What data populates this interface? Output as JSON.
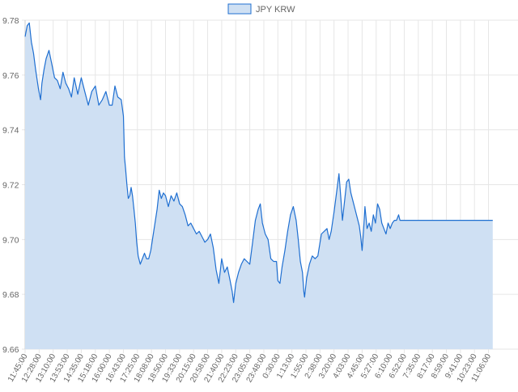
{
  "chart_data": {
    "type": "area",
    "legend": {
      "label": "JPY KRW",
      "position": "top-center"
    },
    "colors": {
      "line": "#1f6fd1",
      "fill": "#cfe0f3",
      "grid": "#e6e6e6",
      "axis_text": "#666666"
    },
    "ylim": [
      9.66,
      9.78
    ],
    "y_ticks": [
      "9.78",
      "9.76",
      "9.74",
      "9.72",
      "9.70",
      "9.68",
      "9.66"
    ],
    "x_ticks": [
      "11:45:00",
      "12:28:00",
      "13:10:00",
      "13:53:00",
      "14:35:00",
      "15:18:00",
      "16:00:00",
      "16:43:00",
      "17:25:00",
      "18:08:00",
      "18:50:00",
      "19:33:00",
      "20:15:00",
      "20:58:00",
      "21:40:00",
      "22:23:00",
      "23:05:00",
      "23:48:00",
      "0:30:00",
      "1:13:00",
      "1:55:00",
      "2:38:00",
      "3:20:00",
      "4:03:00",
      "4:45:00",
      "5:27:00",
      "6:10:00",
      "6:52:00",
      "7:35:00",
      "8:17:00",
      "8:59:00",
      "9:41:00",
      "10:23:00",
      "11:06:00"
    ],
    "grid": true,
    "series": [
      {
        "name": "JPY KRW",
        "points": [
          [
            0.0,
            9.774
          ],
          [
            0.15,
            9.778
          ],
          [
            0.3,
            9.779
          ],
          [
            0.45,
            9.772
          ],
          [
            0.6,
            9.768
          ],
          [
            0.75,
            9.762
          ],
          [
            0.95,
            9.755
          ],
          [
            1.1,
            9.751
          ],
          [
            1.2,
            9.757
          ],
          [
            1.35,
            9.762
          ],
          [
            1.5,
            9.766
          ],
          [
            1.7,
            9.769
          ],
          [
            1.9,
            9.764
          ],
          [
            2.1,
            9.759
          ],
          [
            2.3,
            9.758
          ],
          [
            2.5,
            9.755
          ],
          [
            2.7,
            9.761
          ],
          [
            2.9,
            9.757
          ],
          [
            3.1,
            9.755
          ],
          [
            3.3,
            9.752
          ],
          [
            3.5,
            9.759
          ],
          [
            3.75,
            9.753
          ],
          [
            4.0,
            9.759
          ],
          [
            4.25,
            9.754
          ],
          [
            4.5,
            9.749
          ],
          [
            4.75,
            9.754
          ],
          [
            5.0,
            9.756
          ],
          [
            5.25,
            9.749
          ],
          [
            5.5,
            9.751
          ],
          [
            5.75,
            9.754
          ],
          [
            6.0,
            9.749
          ],
          [
            6.2,
            9.749
          ],
          [
            6.4,
            9.756
          ],
          [
            6.6,
            9.752
          ],
          [
            6.85,
            9.751
          ],
          [
            7.0,
            9.745
          ],
          [
            7.08,
            9.73
          ],
          [
            7.15,
            9.726
          ],
          [
            7.25,
            9.72
          ],
          [
            7.35,
            9.715
          ],
          [
            7.45,
            9.716
          ],
          [
            7.55,
            9.719
          ],
          [
            7.65,
            9.716
          ],
          [
            7.75,
            9.711
          ],
          [
            7.85,
            9.706
          ],
          [
            7.95,
            9.699
          ],
          [
            8.05,
            9.694
          ],
          [
            8.2,
            9.691
          ],
          [
            8.35,
            9.693
          ],
          [
            8.5,
            9.695
          ],
          [
            8.65,
            9.693
          ],
          [
            8.8,
            9.693
          ],
          [
            8.95,
            9.696
          ],
          [
            9.1,
            9.701
          ],
          [
            9.25,
            9.706
          ],
          [
            9.4,
            9.711
          ],
          [
            9.55,
            9.718
          ],
          [
            9.7,
            9.715
          ],
          [
            9.85,
            9.717
          ],
          [
            10.0,
            9.716
          ],
          [
            10.2,
            9.712
          ],
          [
            10.4,
            9.716
          ],
          [
            10.6,
            9.714
          ],
          [
            10.8,
            9.717
          ],
          [
            11.0,
            9.713
          ],
          [
            11.2,
            9.712
          ],
          [
            11.4,
            9.709
          ],
          [
            11.6,
            9.705
          ],
          [
            11.8,
            9.706
          ],
          [
            12.0,
            9.704
          ],
          [
            12.2,
            9.702
          ],
          [
            12.4,
            9.703
          ],
          [
            12.6,
            9.701
          ],
          [
            12.8,
            9.699
          ],
          [
            13.0,
            9.7
          ],
          [
            13.2,
            9.702
          ],
          [
            13.4,
            9.697
          ],
          [
            13.6,
            9.689
          ],
          [
            13.8,
            9.684
          ],
          [
            14.0,
            9.693
          ],
          [
            14.2,
            9.688
          ],
          [
            14.4,
            9.69
          ],
          [
            14.6,
            9.685
          ],
          [
            14.75,
            9.681
          ],
          [
            14.85,
            9.677
          ],
          [
            15.0,
            9.684
          ],
          [
            15.2,
            9.688
          ],
          [
            15.4,
            9.691
          ],
          [
            15.6,
            9.693
          ],
          [
            15.8,
            9.692
          ],
          [
            16.0,
            9.691
          ],
          [
            16.2,
            9.699
          ],
          [
            16.4,
            9.707
          ],
          [
            16.6,
            9.711
          ],
          [
            16.75,
            9.713
          ],
          [
            16.9,
            9.706
          ],
          [
            17.1,
            9.702
          ],
          [
            17.3,
            9.7
          ],
          [
            17.5,
            9.693
          ],
          [
            17.7,
            9.692
          ],
          [
            17.9,
            9.692
          ],
          [
            18.0,
            9.685
          ],
          [
            18.15,
            9.684
          ],
          [
            18.3,
            9.69
          ],
          [
            18.5,
            9.696
          ],
          [
            18.7,
            9.703
          ],
          [
            18.9,
            9.709
          ],
          [
            19.1,
            9.712
          ],
          [
            19.3,
            9.707
          ],
          [
            19.45,
            9.7
          ],
          [
            19.6,
            9.692
          ],
          [
            19.75,
            9.688
          ],
          [
            19.85,
            9.681
          ],
          [
            19.9,
            9.679
          ],
          [
            20.05,
            9.686
          ],
          [
            20.25,
            9.691
          ],
          [
            20.45,
            9.694
          ],
          [
            20.65,
            9.693
          ],
          [
            20.85,
            9.694
          ],
          [
            21.1,
            9.702
          ],
          [
            21.3,
            9.703
          ],
          [
            21.5,
            9.704
          ],
          [
            21.65,
            9.7
          ],
          [
            21.8,
            9.703
          ],
          [
            22.0,
            9.71
          ],
          [
            22.2,
            9.718
          ],
          [
            22.35,
            9.724
          ],
          [
            22.5,
            9.714
          ],
          [
            22.6,
            9.707
          ],
          [
            22.75,
            9.714
          ],
          [
            22.9,
            9.721
          ],
          [
            23.05,
            9.722
          ],
          [
            23.2,
            9.717
          ],
          [
            23.35,
            9.714
          ],
          [
            23.5,
            9.711
          ],
          [
            23.65,
            9.708
          ],
          [
            23.8,
            9.705
          ],
          [
            23.9,
            9.701
          ],
          [
            24.0,
            9.696
          ],
          [
            24.1,
            9.703
          ],
          [
            24.2,
            9.712
          ],
          [
            24.35,
            9.704
          ],
          [
            24.5,
            9.706
          ],
          [
            24.65,
            9.703
          ],
          [
            24.8,
            9.709
          ],
          [
            24.95,
            9.706
          ],
          [
            25.1,
            9.713
          ],
          [
            25.25,
            9.711
          ],
          [
            25.4,
            9.706
          ],
          [
            25.55,
            9.704
          ],
          [
            25.7,
            9.702
          ],
          [
            25.85,
            9.706
          ],
          [
            26.0,
            9.704
          ],
          [
            26.15,
            9.706
          ],
          [
            26.3,
            9.707
          ],
          [
            26.45,
            9.707
          ],
          [
            26.6,
            9.709
          ],
          [
            26.7,
            9.707
          ],
          [
            33.3,
            9.707
          ]
        ]
      }
    ]
  }
}
